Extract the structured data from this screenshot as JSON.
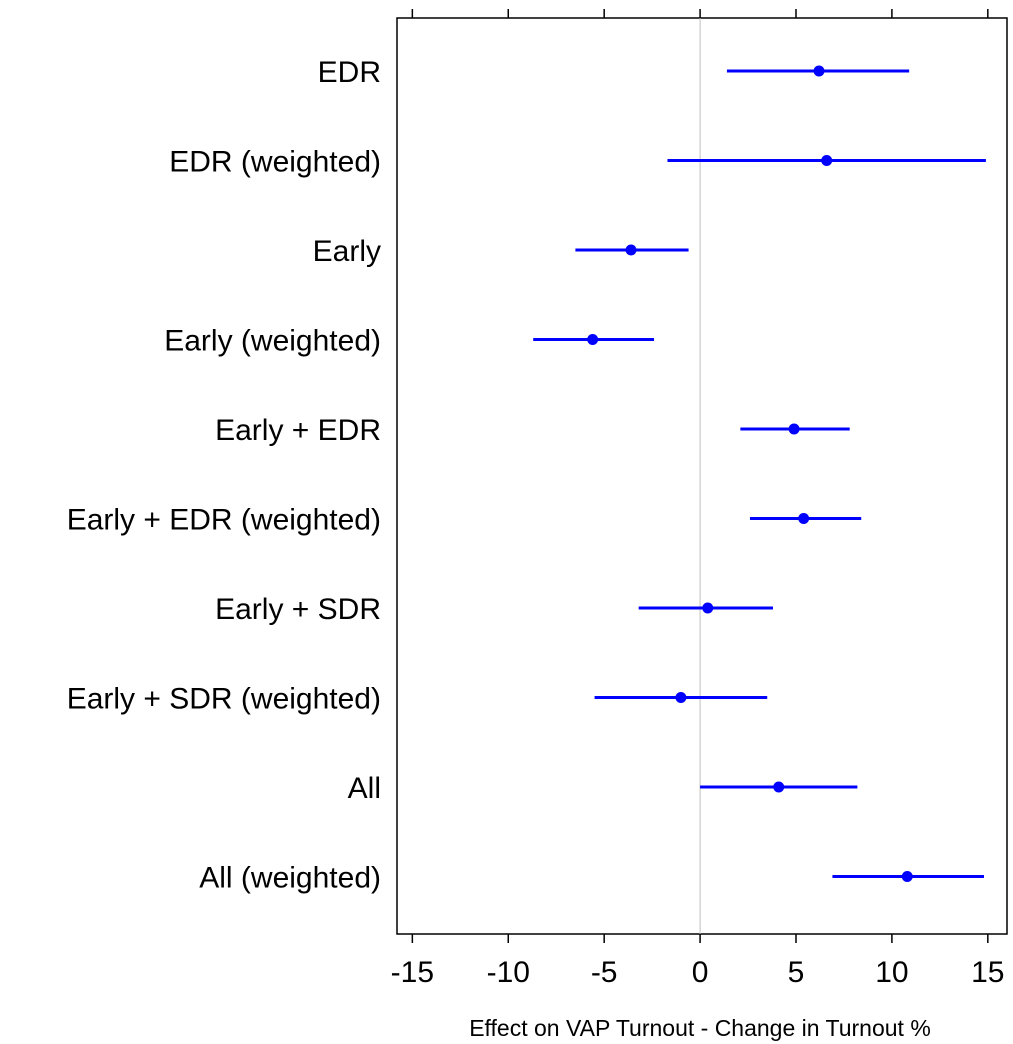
{
  "chart_data": {
    "type": "scatter",
    "subtype": "dot-and-whisker",
    "title": "",
    "xlabel": "Effect on VAP Turnout - Change in Turnout %",
    "ylabel": "",
    "xlim": [
      -15.8,
      16.0
    ],
    "x_ticks": [
      -15,
      -10,
      -5,
      0,
      5,
      10,
      15
    ],
    "x_tick_labels": [
      "-15",
      "-10",
      "-5",
      "0",
      "5",
      "10",
      "15"
    ],
    "reference_line": 0,
    "grid": false,
    "legend": "none",
    "colors": {
      "points": "#0000ff",
      "reference_line": "#bebebe",
      "frame": "#000000"
    },
    "categories": [
      "EDR",
      "EDR (weighted)",
      "Early",
      "Early (weighted)",
      "Early + EDR",
      "Early + EDR (weighted)",
      "Early + SDR",
      "Early + SDR (weighted)",
      "All",
      "All (weighted)"
    ],
    "estimates": [
      6.2,
      6.6,
      -3.6,
      -5.6,
      4.9,
      5.4,
      0.4,
      -1.0,
      4.1,
      10.8
    ],
    "ci_low": [
      1.4,
      -1.7,
      -6.5,
      -8.7,
      2.1,
      2.6,
      -3.2,
      -5.5,
      0.0,
      6.9
    ],
    "ci_high": [
      10.9,
      14.9,
      -0.6,
      -2.4,
      7.8,
      8.4,
      3.8,
      3.5,
      8.2,
      14.8
    ]
  }
}
